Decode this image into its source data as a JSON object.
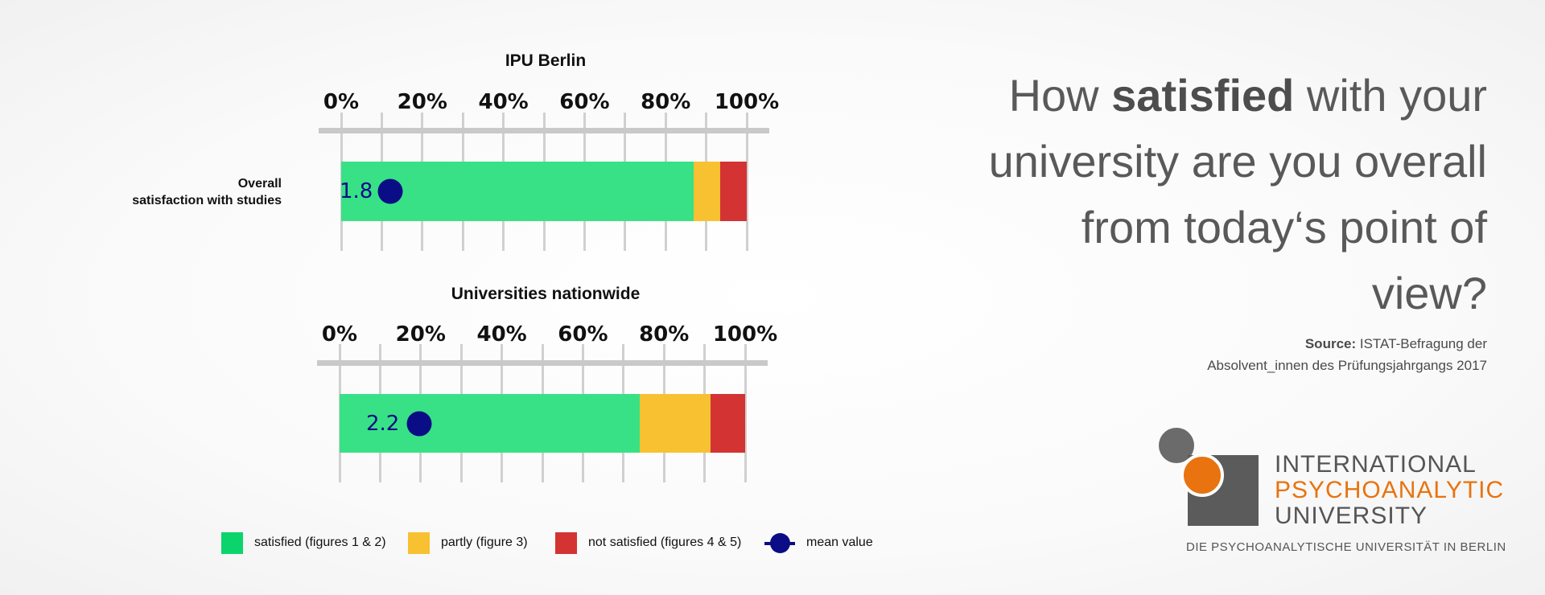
{
  "chart_data": [
    {
      "type": "bar",
      "title": "IPU Berlin",
      "categories": [
        "Overall satisfaction with studies"
      ],
      "category_label_lines": [
        "Overall",
        "satisfaction with studies"
      ],
      "x_ticks": [
        "0%",
        "20%",
        "40%",
        "60%",
        "80%",
        "100%"
      ],
      "xlim": [
        0,
        100
      ],
      "stacked": true,
      "series": [
        {
          "name": "satisfied (figures 1 & 2)",
          "values": [
            87
          ],
          "color": "#38e186"
        },
        {
          "name": "partly (figure 3)",
          "values": [
            6.5
          ],
          "color": "#f7c131"
        },
        {
          "name": "not satisfied  (figures 4 & 5)",
          "values": [
            6.5
          ],
          "color": "#d33333"
        }
      ],
      "mean": {
        "label": "1.8",
        "position_percent": 12.5
      }
    },
    {
      "type": "bar",
      "title": "Universities nationwide",
      "categories": [
        "Overall satisfaction with studies"
      ],
      "x_ticks": [
        "0%",
        "20%",
        "40%",
        "60%",
        "80%",
        "100%"
      ],
      "xlim": [
        0,
        100
      ],
      "stacked": true,
      "series": [
        {
          "name": "satisfied (figures 1 & 2)",
          "values": [
            74
          ],
          "color": "#38e186"
        },
        {
          "name": "partly (figure 3)",
          "values": [
            17.5
          ],
          "color": "#f7c131"
        },
        {
          "name": "not satisfied  (figures 4 & 5)",
          "values": [
            8.5
          ],
          "color": "#d33333"
        }
      ],
      "mean": {
        "label": "2.2",
        "position_percent": 19.5
      }
    }
  ],
  "legend": [
    {
      "label": "satisfied (figures 1 & 2)",
      "color": "#0cd46c",
      "kind": "swatch"
    },
    {
      "label": "partly (figure 3)",
      "color": "#f7c131",
      "kind": "swatch"
    },
    {
      "label": "not satisfied  (figures 4 & 5)",
      "color": "#d33333",
      "kind": "swatch"
    },
    {
      "label": "mean value",
      "color": "#0b0d86",
      "kind": "mean"
    }
  ],
  "question": {
    "pre": "How ",
    "bold": "satisfied",
    "post": " with your university are you overall from today‘s point of view?"
  },
  "source": {
    "label": "Source:",
    "text_line1": "ISTAT-Befragung der",
    "text_line2": "Absolvent_innen des Prüfungsjahrgangs 2017"
  },
  "logo": {
    "line1": "INTERNATIONAL",
    "line2": "PSYCHOANALYTIC",
    "line3": "UNIVERSITY",
    "tagline": "DIE PSYCHOANALYTISCHE UNIVERSITÄT IN BERLIN"
  },
  "colors": {
    "accent_orange": "#e8730f",
    "mean_blue": "#0b0d86"
  }
}
